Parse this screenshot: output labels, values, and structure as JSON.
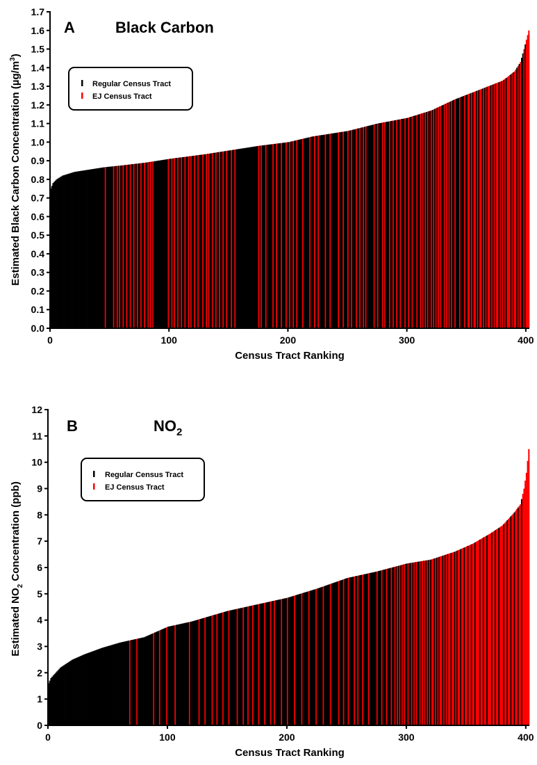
{
  "colors": {
    "regular": "#000000",
    "ej": "#ff0000"
  },
  "legend": {
    "regular_label": "Regular Census Tract",
    "ej_label": "EJ Census Tract"
  },
  "chart_data": [
    {
      "type": "bar",
      "panel_letter": "A",
      "title": "Black Carbon",
      "xlabel": "Census Tract Ranking",
      "ylabel_prefix": "Estimated Black Carbon Concentration (µg/m",
      "ylabel_sup": "3",
      "ylabel_suffix": ")",
      "xlim": [
        0,
        403
      ],
      "ylim": [
        0.0,
        1.7
      ],
      "xticks": [
        0,
        100,
        200,
        300,
        400
      ],
      "yticks": [
        "0.0",
        "0.1",
        "0.2",
        "0.3",
        "0.4",
        "0.5",
        "0.6",
        "0.7",
        "0.8",
        "0.9",
        "1.0",
        "1.1",
        "1.2",
        "1.3",
        "1.4",
        "1.5",
        "1.6",
        "1.7"
      ],
      "n_tracts": 403,
      "value_curve": [
        [
          0,
          0.75
        ],
        [
          2,
          0.78
        ],
        [
          5,
          0.8
        ],
        [
          10,
          0.82
        ],
        [
          20,
          0.84
        ],
        [
          30,
          0.85
        ],
        [
          45,
          0.865
        ],
        [
          60,
          0.875
        ],
        [
          80,
          0.89
        ],
        [
          100,
          0.91
        ],
        [
          130,
          0.935
        ],
        [
          150,
          0.955
        ],
        [
          175,
          0.98
        ],
        [
          200,
          1.0
        ],
        [
          220,
          1.03
        ],
        [
          250,
          1.06
        ],
        [
          275,
          1.1
        ],
        [
          300,
          1.13
        ],
        [
          320,
          1.17
        ],
        [
          340,
          1.23
        ],
        [
          360,
          1.28
        ],
        [
          380,
          1.33
        ],
        [
          390,
          1.38
        ],
        [
          395,
          1.43
        ],
        [
          398,
          1.5
        ],
        [
          400,
          1.55
        ],
        [
          402,
          1.6
        ]
      ],
      "ej_ranks": [
        46,
        53,
        56,
        58,
        61,
        64,
        67,
        70,
        73,
        76,
        79,
        82,
        84,
        86,
        99,
        102,
        104,
        107,
        110,
        113,
        116,
        118,
        121,
        124,
        128,
        131,
        133,
        136,
        139,
        142,
        145,
        148,
        152,
        155,
        175,
        177,
        181,
        187,
        190,
        194,
        198,
        201,
        204,
        207,
        212,
        218,
        222,
        225,
        231,
        235,
        242,
        246,
        250,
        253,
        257,
        260,
        263,
        265,
        272,
        275,
        279,
        281,
        285,
        288,
        291,
        294,
        298,
        301,
        304,
        308,
        311,
        313,
        315,
        317,
        320,
        322,
        324,
        326,
        328,
        331,
        333,
        335,
        337,
        340,
        344,
        348,
        351,
        352,
        354,
        356,
        357,
        359,
        361,
        362,
        364,
        366,
        368,
        369,
        371,
        373,
        375,
        376,
        378,
        380,
        382,
        384,
        385,
        386,
        388,
        390,
        391,
        393,
        395,
        398,
        400,
        401,
        402
      ]
    },
    {
      "type": "bar",
      "panel_letter": "B",
      "title_main": "NO",
      "title_sub": "2",
      "xlabel": "Census Tract Ranking",
      "ylabel_prefix": "Estimated NO",
      "ylabel_sub": "2",
      "ylabel_suffix": " Concentration (ppb)",
      "xlim": [
        0,
        403
      ],
      "ylim": [
        0,
        12
      ],
      "xticks": [
        0,
        100,
        200,
        300,
        400
      ],
      "yticks": [
        "0",
        "1",
        "2",
        "3",
        "4",
        "5",
        "6",
        "7",
        "8",
        "9",
        "10",
        "11",
        "12"
      ],
      "n_tracts": 403,
      "value_curve": [
        [
          0,
          1.6
        ],
        [
          2,
          1.8
        ],
        [
          5,
          1.95
        ],
        [
          10,
          2.2
        ],
        [
          20,
          2.5
        ],
        [
          30,
          2.7
        ],
        [
          45,
          2.95
        ],
        [
          60,
          3.15
        ],
        [
          80,
          3.35
        ],
        [
          100,
          3.75
        ],
        [
          120,
          3.95
        ],
        [
          150,
          4.35
        ],
        [
          175,
          4.6
        ],
        [
          200,
          4.85
        ],
        [
          225,
          5.2
        ],
        [
          250,
          5.6
        ],
        [
          275,
          5.85
        ],
        [
          300,
          6.15
        ],
        [
          320,
          6.3
        ],
        [
          340,
          6.6
        ],
        [
          355,
          6.9
        ],
        [
          370,
          7.3
        ],
        [
          380,
          7.6
        ],
        [
          390,
          8.1
        ],
        [
          395,
          8.4
        ],
        [
          398,
          9.0
        ],
        [
          400,
          9.6
        ],
        [
          402,
          10.5
        ]
      ],
      "ej_ranks": [
        68,
        74,
        88,
        93,
        99,
        106,
        118,
        126,
        131,
        137,
        141,
        146,
        151,
        158,
        163,
        167,
        171,
        176,
        181,
        186,
        189,
        195,
        200,
        206,
        212,
        218,
        224,
        230,
        236,
        243,
        247,
        251,
        256,
        259,
        263,
        268,
        275,
        279,
        283,
        287,
        290,
        292,
        294,
        296,
        298,
        301,
        304,
        306,
        308,
        311,
        313,
        315,
        317,
        319,
        321,
        322,
        324,
        326,
        328,
        329,
        331,
        333,
        335,
        336,
        338,
        339,
        341,
        343,
        344,
        346,
        347,
        349,
        350,
        352,
        353,
        355,
        356,
        358,
        359,
        360,
        362,
        363,
        365,
        366,
        368,
        369,
        370,
        372,
        373,
        375,
        376,
        378,
        379,
        380,
        382,
        383,
        385,
        386,
        388,
        389,
        391,
        392,
        394,
        395,
        397,
        398,
        399,
        400,
        401,
        402
      ]
    }
  ]
}
